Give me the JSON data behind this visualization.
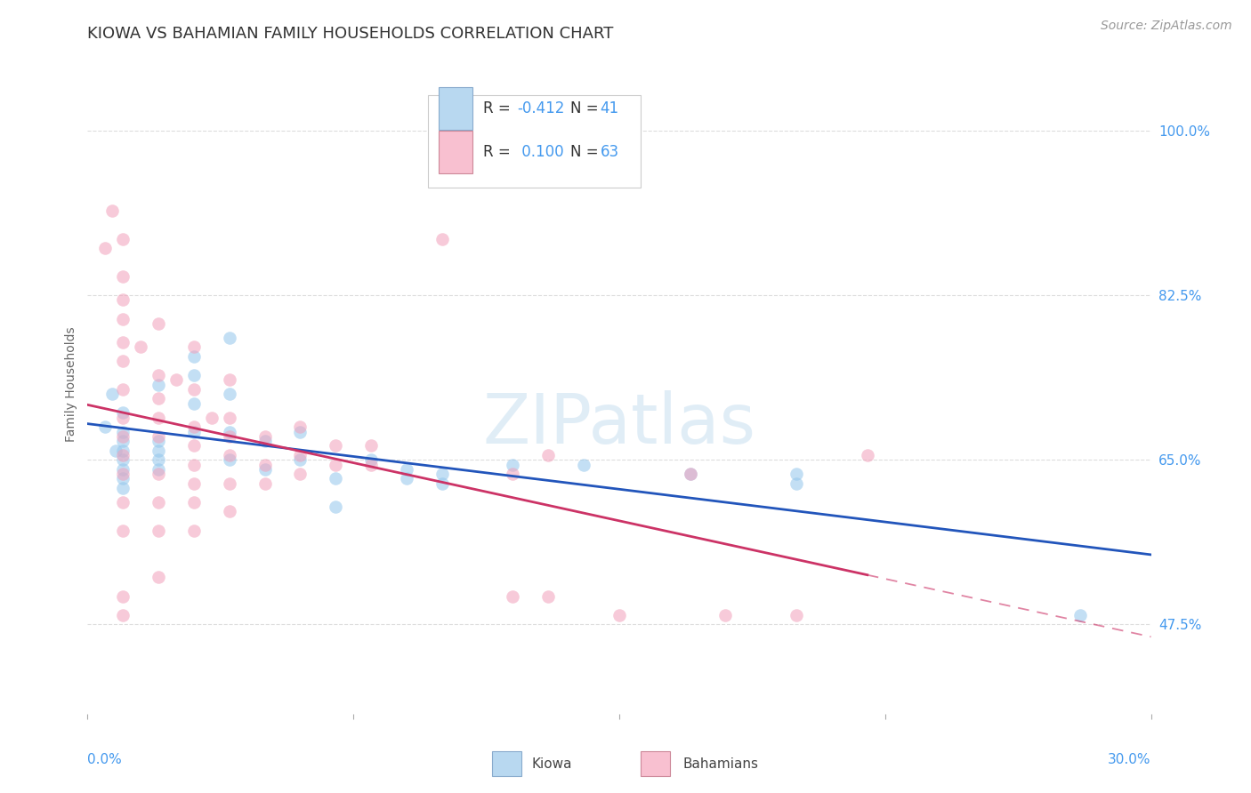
{
  "title": "KIOWA VS BAHAMIAN FAMILY HOUSEHOLDS CORRELATION CHART",
  "source": "Source: ZipAtlas.com",
  "ylabel": "Family Households",
  "y_tick_labels": [
    "100.0%",
    "82.5%",
    "65.0%",
    "47.5%"
  ],
  "y_tick_values": [
    1.0,
    0.825,
    0.65,
    0.475
  ],
  "xlim": [
    0.0,
    0.3
  ],
  "ylim": [
    0.38,
    1.08
  ],
  "kiowa_color": "#93C6EC",
  "bahamian_color": "#F2A0BA",
  "kiowa_line_color": "#2255BB",
  "bahamian_line_color": "#CC3366",
  "background_color": "#FFFFFF",
  "grid_color": "#DDDDDD",
  "title_fontsize": 13,
  "axis_label_fontsize": 10,
  "tick_fontsize": 11,
  "legend_fontsize": 12,
  "source_fontsize": 10,
  "marker_size": 110,
  "marker_alpha": 0.55,
  "legend_box_color_kiowa": "#B8D8F0",
  "legend_box_color_bahamians": "#F8C0D0",
  "kiowa_R": "-0.412",
  "kiowa_N": "41",
  "bahamian_R": "0.100",
  "bahamian_N": "63",
  "kiowa_points": [
    [
      0.005,
      0.685
    ],
    [
      0.007,
      0.72
    ],
    [
      0.008,
      0.66
    ],
    [
      0.01,
      0.67
    ],
    [
      0.01,
      0.66
    ],
    [
      0.01,
      0.65
    ],
    [
      0.01,
      0.64
    ],
    [
      0.01,
      0.63
    ],
    [
      0.01,
      0.62
    ],
    [
      0.01,
      0.7
    ],
    [
      0.01,
      0.68
    ],
    [
      0.02,
      0.66
    ],
    [
      0.02,
      0.65
    ],
    [
      0.02,
      0.67
    ],
    [
      0.02,
      0.64
    ],
    [
      0.02,
      0.73
    ],
    [
      0.03,
      0.76
    ],
    [
      0.03,
      0.74
    ],
    [
      0.03,
      0.71
    ],
    [
      0.03,
      0.68
    ],
    [
      0.04,
      0.78
    ],
    [
      0.04,
      0.72
    ],
    [
      0.04,
      0.68
    ],
    [
      0.04,
      0.65
    ],
    [
      0.05,
      0.67
    ],
    [
      0.05,
      0.64
    ],
    [
      0.06,
      0.68
    ],
    [
      0.06,
      0.65
    ],
    [
      0.07,
      0.63
    ],
    [
      0.07,
      0.6
    ],
    [
      0.08,
      0.65
    ],
    [
      0.09,
      0.64
    ],
    [
      0.09,
      0.63
    ],
    [
      0.1,
      0.635
    ],
    [
      0.1,
      0.625
    ],
    [
      0.12,
      0.645
    ],
    [
      0.14,
      0.645
    ],
    [
      0.17,
      0.635
    ],
    [
      0.2,
      0.635
    ],
    [
      0.2,
      0.625
    ],
    [
      0.28,
      0.485
    ]
  ],
  "bahamian_points": [
    [
      0.005,
      0.875
    ],
    [
      0.007,
      0.915
    ],
    [
      0.01,
      0.885
    ],
    [
      0.01,
      0.845
    ],
    [
      0.01,
      0.82
    ],
    [
      0.01,
      0.8
    ],
    [
      0.01,
      0.775
    ],
    [
      0.01,
      0.755
    ],
    [
      0.01,
      0.725
    ],
    [
      0.01,
      0.695
    ],
    [
      0.01,
      0.675
    ],
    [
      0.01,
      0.655
    ],
    [
      0.01,
      0.635
    ],
    [
      0.01,
      0.605
    ],
    [
      0.01,
      0.575
    ],
    [
      0.01,
      0.505
    ],
    [
      0.01,
      0.485
    ],
    [
      0.015,
      0.77
    ],
    [
      0.02,
      0.795
    ],
    [
      0.02,
      0.74
    ],
    [
      0.02,
      0.715
    ],
    [
      0.02,
      0.695
    ],
    [
      0.02,
      0.675
    ],
    [
      0.02,
      0.635
    ],
    [
      0.02,
      0.605
    ],
    [
      0.02,
      0.575
    ],
    [
      0.02,
      0.525
    ],
    [
      0.025,
      0.735
    ],
    [
      0.03,
      0.77
    ],
    [
      0.03,
      0.725
    ],
    [
      0.03,
      0.685
    ],
    [
      0.03,
      0.665
    ],
    [
      0.03,
      0.645
    ],
    [
      0.03,
      0.625
    ],
    [
      0.03,
      0.605
    ],
    [
      0.03,
      0.575
    ],
    [
      0.035,
      0.695
    ],
    [
      0.04,
      0.735
    ],
    [
      0.04,
      0.695
    ],
    [
      0.04,
      0.675
    ],
    [
      0.04,
      0.655
    ],
    [
      0.04,
      0.625
    ],
    [
      0.04,
      0.595
    ],
    [
      0.05,
      0.675
    ],
    [
      0.05,
      0.645
    ],
    [
      0.05,
      0.625
    ],
    [
      0.06,
      0.685
    ],
    [
      0.06,
      0.655
    ],
    [
      0.06,
      0.635
    ],
    [
      0.07,
      0.665
    ],
    [
      0.07,
      0.645
    ],
    [
      0.08,
      0.665
    ],
    [
      0.08,
      0.645
    ],
    [
      0.1,
      0.885
    ],
    [
      0.12,
      0.635
    ],
    [
      0.12,
      0.505
    ],
    [
      0.13,
      0.655
    ],
    [
      0.13,
      0.505
    ],
    [
      0.15,
      0.485
    ],
    [
      0.17,
      0.635
    ],
    [
      0.18,
      0.485
    ],
    [
      0.2,
      0.485
    ],
    [
      0.22,
      0.655
    ]
  ]
}
